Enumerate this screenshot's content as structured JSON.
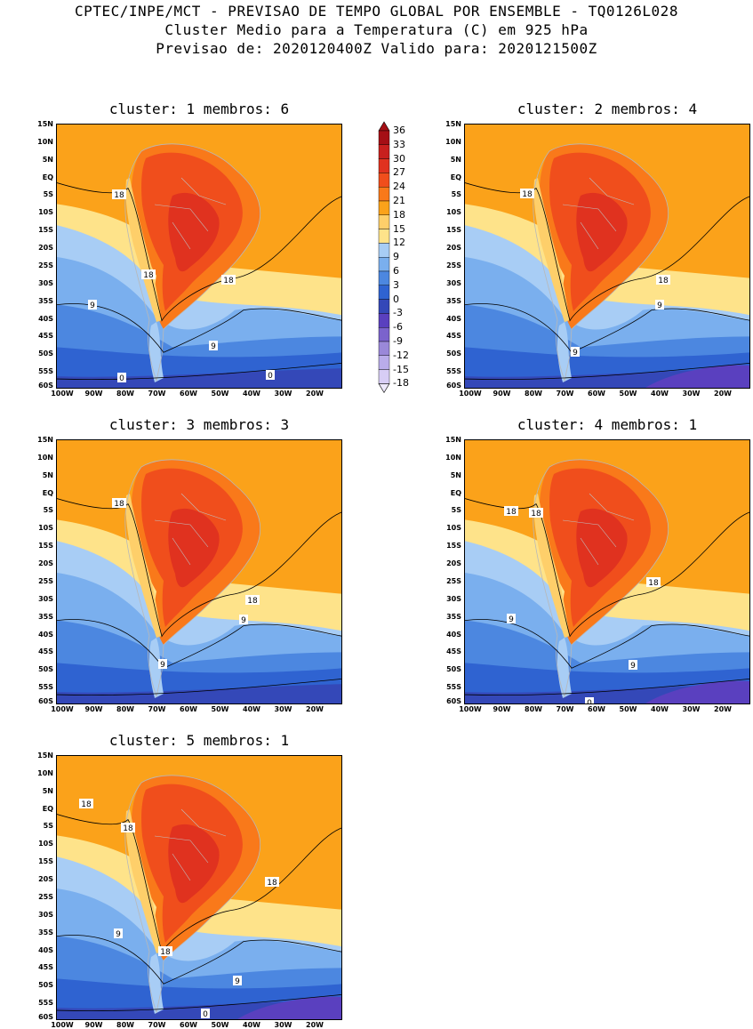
{
  "header": {
    "line1": "CPTEC/INPE/MCT - PREVISAO DE TEMPO GLOBAL POR ENSEMBLE - TQ0126L028",
    "line2": "Cluster Medio para a Temperatura (C) em 925 hPa",
    "line3": "Previsao de: 2020120400Z   Valido para: 2020121500Z"
  },
  "lat_ticks": [
    "15N",
    "10N",
    "5N",
    "EQ",
    "5S",
    "10S",
    "15S",
    "20S",
    "25S",
    "30S",
    "35S",
    "40S",
    "45S",
    "50S",
    "55S",
    "60S"
  ],
  "lon_ticks": [
    "100W",
    "90W",
    "80W",
    "70W",
    "60W",
    "50W",
    "40W",
    "30W",
    "20W"
  ],
  "colorbar": {
    "labels": [
      "36",
      "33",
      "30",
      "27",
      "24",
      "21",
      "18",
      "15",
      "12",
      "9",
      "6",
      "3",
      "0",
      "-3",
      "-6",
      "-9",
      "-12",
      "-15",
      "-18"
    ],
    "colors": [
      "#a50f15",
      "#c8201e",
      "#e0321f",
      "#f04e1c",
      "#f9791a",
      "#fba21a",
      "#fecf6a",
      "#fee38a",
      "#a8cdf5",
      "#7aafee",
      "#4c87e0",
      "#2f63d1",
      "#3448b8",
      "#5a40bf",
      "#7b63cc",
      "#9a88d9",
      "#b9acea",
      "#d7cdf5"
    ]
  },
  "clusters": [
    {
      "title": "cluster: 1   membros: 6",
      "labels": [
        "18",
        "18",
        "18",
        "9",
        "9",
        "0",
        "0"
      ]
    },
    {
      "title": "cluster: 2   membros: 4",
      "labels": [
        "18",
        "18",
        "9",
        "9"
      ]
    },
    {
      "title": "cluster: 3   membros: 3",
      "labels": [
        "18",
        "18",
        "9",
        "9"
      ]
    },
    {
      "title": "cluster: 4   membros: 1",
      "labels": [
        "18",
        "18",
        "18",
        "9",
        "9",
        "0"
      ]
    },
    {
      "title": "cluster: 5   membros: 1",
      "labels": [
        "18",
        "18",
        "18",
        "18",
        "9",
        "9",
        "0"
      ]
    }
  ]
}
